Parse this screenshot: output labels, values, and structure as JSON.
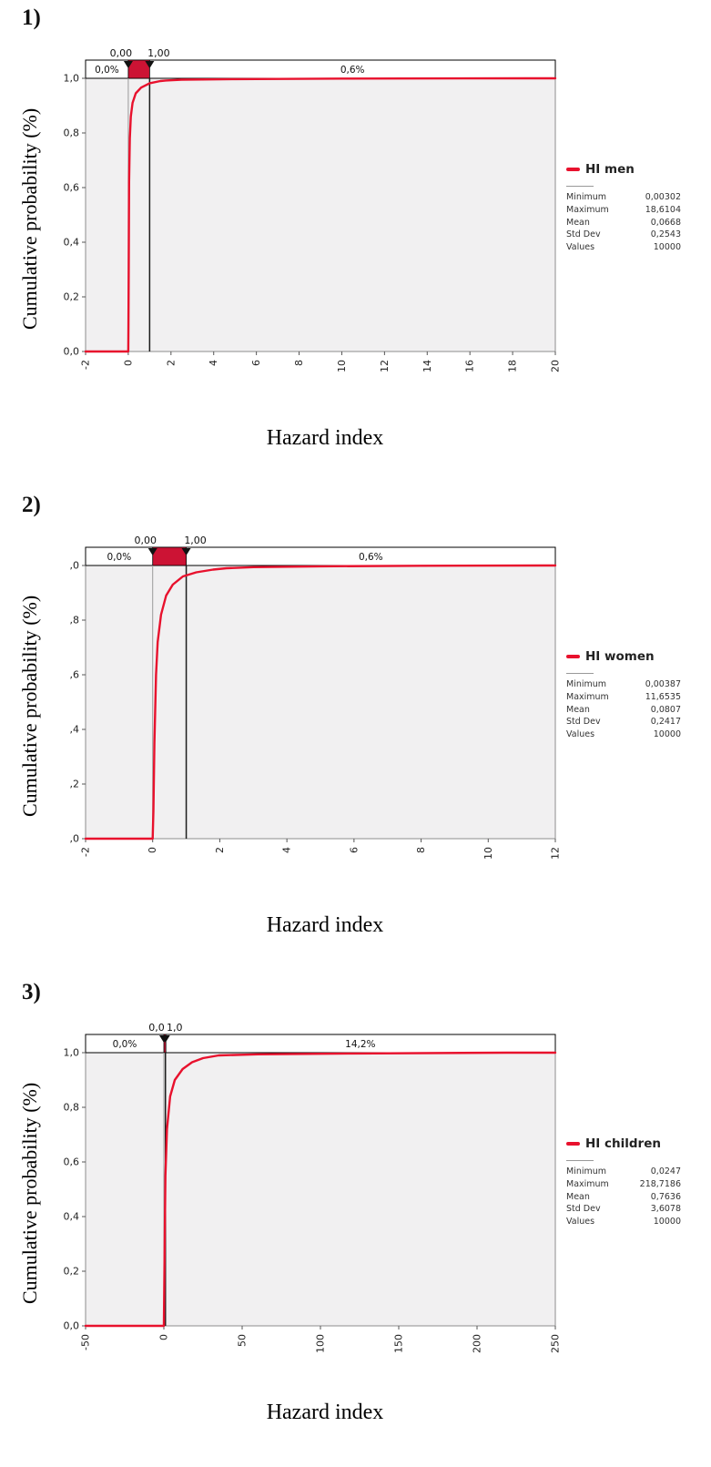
{
  "shared": {
    "ylabel": "Cumulative probability (%)",
    "xlabel": "Hazard index"
  },
  "colors": {
    "curve": "#e8112d",
    "band_fill": "#cc1334",
    "plot_bg": "#f1f0f1"
  },
  "chart_data": [
    {
      "type": "line",
      "panel_label": "1)",
      "legend": "HI men",
      "x_min": -2,
      "x_max": 20,
      "x_ticks": [
        -2,
        0,
        2,
        4,
        6,
        8,
        10,
        12,
        14,
        16,
        18,
        20
      ],
      "y_tick_labels": [
        "1,0",
        "0,8",
        "0,6",
        "0,4",
        "0,2",
        "0,0"
      ],
      "delimiters": {
        "left": {
          "value": 0,
          "label": "0,00"
        },
        "right": {
          "value": 1,
          "label": "1,00"
        }
      },
      "band": {
        "left_pct": "0,0%",
        "right_pct": "0,6%"
      },
      "stats": [
        {
          "label": "Minimum",
          "value": "0,00302"
        },
        {
          "label": "Maximum",
          "value": "18,6104"
        },
        {
          "label": "Mean",
          "value": "0,0668"
        },
        {
          "label": "Std Dev",
          "value": "0,2543"
        },
        {
          "label": "Values",
          "value": "10000"
        }
      ],
      "curve": [
        [
          -2,
          0
        ],
        [
          0,
          0
        ],
        [
          0.01,
          0.1
        ],
        [
          0.02,
          0.3
        ],
        [
          0.04,
          0.62
        ],
        [
          0.07,
          0.78
        ],
        [
          0.12,
          0.86
        ],
        [
          0.2,
          0.91
        ],
        [
          0.35,
          0.945
        ],
        [
          0.6,
          0.966
        ],
        [
          1,
          0.982
        ],
        [
          1.5,
          0.99
        ],
        [
          1.75,
          0.992
        ],
        [
          2.5,
          0.995
        ],
        [
          5,
          0.997
        ],
        [
          10,
          0.999
        ],
        [
          18.61,
          1
        ],
        [
          20,
          1
        ]
      ]
    },
    {
      "type": "line",
      "panel_label": "2)",
      "legend": "HI women",
      "x_min": -2,
      "x_max": 12,
      "x_ticks": [
        -2,
        0,
        2,
        4,
        6,
        8,
        10,
        12
      ],
      "y_tick_labels": [
        ",0",
        ",8",
        ",6",
        ",4",
        ",2",
        ",0"
      ],
      "delimiters": {
        "left": {
          "value": 0,
          "label": "0,00"
        },
        "right": {
          "value": 1,
          "label": "1,00"
        }
      },
      "band": {
        "left_pct": "0,0%",
        "right_pct": "0,6%"
      },
      "stats": [
        {
          "label": "Minimum",
          "value": "0,00387"
        },
        {
          "label": "Maximum",
          "value": "11,6535"
        },
        {
          "label": "Mean",
          "value": "0,0807"
        },
        {
          "label": "Std Dev",
          "value": "0,2417"
        },
        {
          "label": "Values",
          "value": "10000"
        }
      ],
      "curve": [
        [
          -2,
          0
        ],
        [
          0,
          0
        ],
        [
          0.02,
          0.1
        ],
        [
          0.05,
          0.35
        ],
        [
          0.1,
          0.6
        ],
        [
          0.15,
          0.72
        ],
        [
          0.25,
          0.82
        ],
        [
          0.4,
          0.89
        ],
        [
          0.6,
          0.93
        ],
        [
          0.9,
          0.96
        ],
        [
          1.3,
          0.975
        ],
        [
          1.8,
          0.985
        ],
        [
          2.2,
          0.99
        ],
        [
          3,
          0.994
        ],
        [
          5,
          0.997
        ],
        [
          8,
          0.999
        ],
        [
          11.65,
          1
        ],
        [
          12,
          1
        ]
      ]
    },
    {
      "type": "line",
      "panel_label": "3)",
      "legend": "HI children",
      "x_min": -50,
      "x_max": 250,
      "x_ticks": [
        -50,
        0,
        50,
        100,
        150,
        200,
        250
      ],
      "y_tick_labels": [
        "1,0",
        "0,8",
        "0,6",
        "0,4",
        "0,2",
        "0,0"
      ],
      "delimiters": {
        "left": {
          "value": 0,
          "label": "0,0"
        },
        "right": {
          "value": 1,
          "label": "1,0"
        }
      },
      "band": {
        "left_pct": "0,0%",
        "right_pct": "14,2%"
      },
      "stats": [
        {
          "label": "Minimum",
          "value": "0,0247"
        },
        {
          "label": "Maximum",
          "value": "218,7186"
        },
        {
          "label": "Mean",
          "value": "0,7636"
        },
        {
          "label": "Std Dev",
          "value": "3,6078"
        },
        {
          "label": "Values",
          "value": "10000"
        }
      ],
      "curve": [
        [
          -50,
          0
        ],
        [
          0,
          0
        ],
        [
          0.5,
          0.3
        ],
        [
          1,
          0.55
        ],
        [
          2,
          0.72
        ],
        [
          4,
          0.84
        ],
        [
          7,
          0.9
        ],
        [
          12,
          0.94
        ],
        [
          18,
          0.965
        ],
        [
          25,
          0.98
        ],
        [
          35,
          0.99
        ],
        [
          60,
          0.994
        ],
        [
          120,
          0.997
        ],
        [
          218.7,
          1
        ],
        [
          250,
          1
        ]
      ]
    }
  ]
}
